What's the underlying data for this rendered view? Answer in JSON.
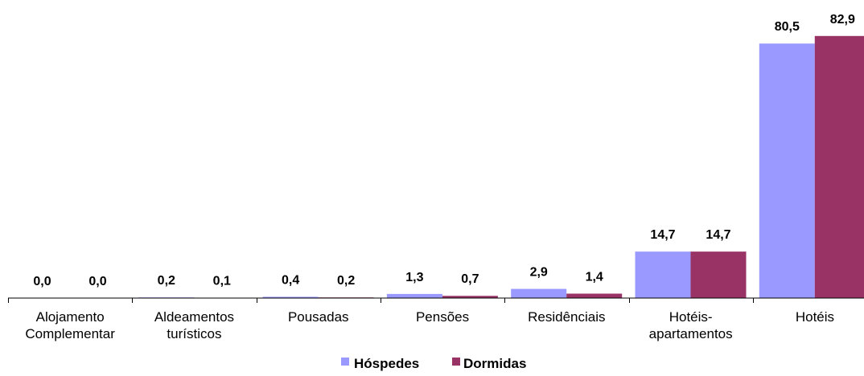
{
  "chart_data": {
    "type": "bar",
    "categories": [
      [
        "Alojamento",
        "Complementar"
      ],
      [
        "Aldeamentos",
        "turísticos"
      ],
      [
        "Pousadas"
      ],
      [
        "Pensões"
      ],
      [
        "Residênciais"
      ],
      [
        "Hotéis-",
        "apartamentos"
      ],
      [
        "Hotéis"
      ]
    ],
    "series": [
      {
        "name": "Hóspedes",
        "color": "#9999ff",
        "values": [
          0.0,
          0.2,
          0.4,
          1.3,
          2.9,
          14.7,
          80.5
        ],
        "labels": [
          "0,0",
          "0,2",
          "0,4",
          "1,3",
          "2,9",
          "14,7",
          "80,5"
        ]
      },
      {
        "name": "Dormidas",
        "color": "#993366",
        "values": [
          0.0,
          0.1,
          0.2,
          0.7,
          1.4,
          14.7,
          82.9
        ],
        "labels": [
          "0,0",
          "0,1",
          "0,2",
          "0,7",
          "1,4",
          "14,7",
          "82,9"
        ]
      }
    ],
    "ylim": [
      0,
      90
    ],
    "legend_position": "bottom",
    "grid": false
  }
}
